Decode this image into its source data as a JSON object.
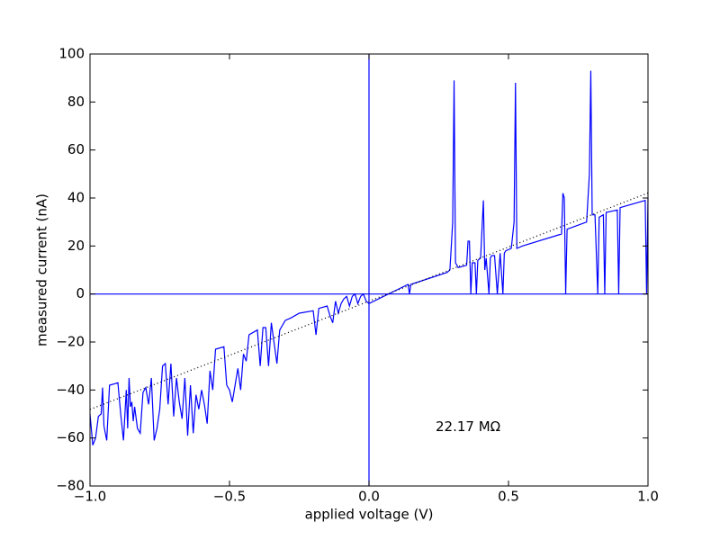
{
  "chart_data": {
    "type": "line",
    "xlabel": "applied voltage (V)",
    "ylabel": "measured current (nA)",
    "annotation": {
      "text": "22.17 MΩ",
      "x": 0.355,
      "y": -55.5
    },
    "xlim": [
      -1,
      1
    ],
    "ylim": [
      -80,
      100
    ],
    "xticks": [
      {
        "value": -1,
        "label": "−1.0"
      },
      {
        "value": -0.5,
        "label": "−0.5"
      },
      {
        "value": 0,
        "label": "0.0"
      },
      {
        "value": 0.5,
        "label": "0.5"
      },
      {
        "value": 1,
        "label": "1.0"
      }
    ],
    "yticks": [
      {
        "value": -80,
        "label": "−80"
      },
      {
        "value": -60,
        "label": "−60"
      },
      {
        "value": -40,
        "label": "−40"
      },
      {
        "value": -20,
        "label": "−20"
      },
      0,
      20,
      40,
      60,
      80,
      100
    ],
    "axhline": 0,
    "axvline": 0,
    "reference_color": "#0000ff",
    "series": [
      {
        "color": "#0000ff",
        "style": "solid",
        "x": [
          -1.0,
          -0.99,
          -0.98,
          -0.97,
          -0.96,
          -0.955,
          -0.95,
          -0.94,
          -0.93,
          -0.9,
          -0.89,
          -0.88,
          -0.87,
          -0.865,
          -0.86,
          -0.855,
          -0.85,
          -0.845,
          -0.84,
          -0.83,
          -0.82,
          -0.81,
          -0.8,
          -0.79,
          -0.78,
          -0.77,
          -0.76,
          -0.75,
          -0.74,
          -0.73,
          -0.72,
          -0.71,
          -0.7,
          -0.69,
          -0.68,
          -0.67,
          -0.66,
          -0.65,
          -0.64,
          -0.63,
          -0.62,
          -0.61,
          -0.6,
          -0.59,
          -0.58,
          -0.57,
          -0.56,
          -0.55,
          -0.52,
          -0.51,
          -0.5,
          -0.49,
          -0.48,
          -0.47,
          -0.46,
          -0.45,
          -0.44,
          -0.43,
          -0.4,
          -0.39,
          -0.38,
          -0.37,
          -0.36,
          -0.35,
          -0.33,
          -0.32,
          -0.3,
          -0.28,
          -0.25,
          -0.2,
          -0.19,
          -0.18,
          -0.15,
          -0.14,
          -0.13,
          -0.12,
          -0.11,
          -0.1,
          -0.09,
          -0.08,
          -0.07,
          -0.06,
          -0.05,
          -0.04,
          -0.03,
          -0.02,
          -0.01,
          0.0,
          0.14,
          0.145,
          0.15,
          0.28,
          0.29,
          0.3,
          0.305,
          0.31,
          0.32,
          0.35,
          0.355,
          0.36,
          0.365,
          0.37,
          0.38,
          0.385,
          0.39,
          0.4,
          0.41,
          0.415,
          0.42,
          0.43,
          0.435,
          0.44,
          0.45,
          0.46,
          0.47,
          0.48,
          0.485,
          0.49,
          0.51,
          0.52,
          0.525,
          0.53,
          0.55,
          0.69,
          0.695,
          0.7,
          0.705,
          0.71,
          0.78,
          0.79,
          0.795,
          0.8,
          0.81,
          0.82,
          0.825,
          0.84,
          0.845,
          0.85,
          0.89,
          0.895,
          0.9,
          0.99,
          0.995,
          1.0
        ],
        "values": [
          -50,
          -63,
          -60,
          -51,
          -50,
          -39,
          -55,
          -61,
          -38,
          -37,
          -50,
          -61,
          -40,
          -56,
          -35,
          -47,
          -45,
          -53,
          -47,
          -56,
          -58,
          -41,
          -39,
          -46,
          -35,
          -61,
          -56,
          -48,
          -30,
          -29,
          -46,
          -29,
          -51,
          -35,
          -45,
          -52,
          -35,
          -59,
          -38,
          -58,
          -42,
          -48,
          -40,
          -46,
          -54,
          -32,
          -40,
          -23,
          -22,
          -38,
          -40,
          -45,
          -38,
          -31,
          -40,
          -25,
          -28,
          -17,
          -15,
          -30,
          -14,
          -14,
          -30,
          -12,
          -29,
          -15,
          -11,
          -10,
          -8,
          -7,
          -17,
          -6,
          -5,
          -9,
          -12,
          -3,
          -8,
          -4,
          -2,
          -1,
          -5,
          -1,
          0,
          -4,
          -1,
          0,
          -3,
          -4,
          4,
          0,
          4,
          9,
          10,
          30,
          89,
          13,
          11,
          12,
          22,
          22,
          0,
          13,
          13,
          0,
          14,
          15,
          39,
          10,
          15,
          0,
          15,
          16,
          16,
          0,
          17,
          0,
          17,
          18,
          19,
          30,
          88,
          19,
          20,
          25,
          42,
          40,
          0,
          27,
          30,
          50,
          93,
          33,
          33,
          0,
          32,
          33,
          0,
          34,
          35,
          0,
          36,
          39,
          0,
          40
        ]
      },
      {
        "color": "#000000",
        "style": "dotted",
        "x": [
          -1,
          1
        ],
        "values": [
          -48.1,
          42.1
        ]
      }
    ]
  }
}
